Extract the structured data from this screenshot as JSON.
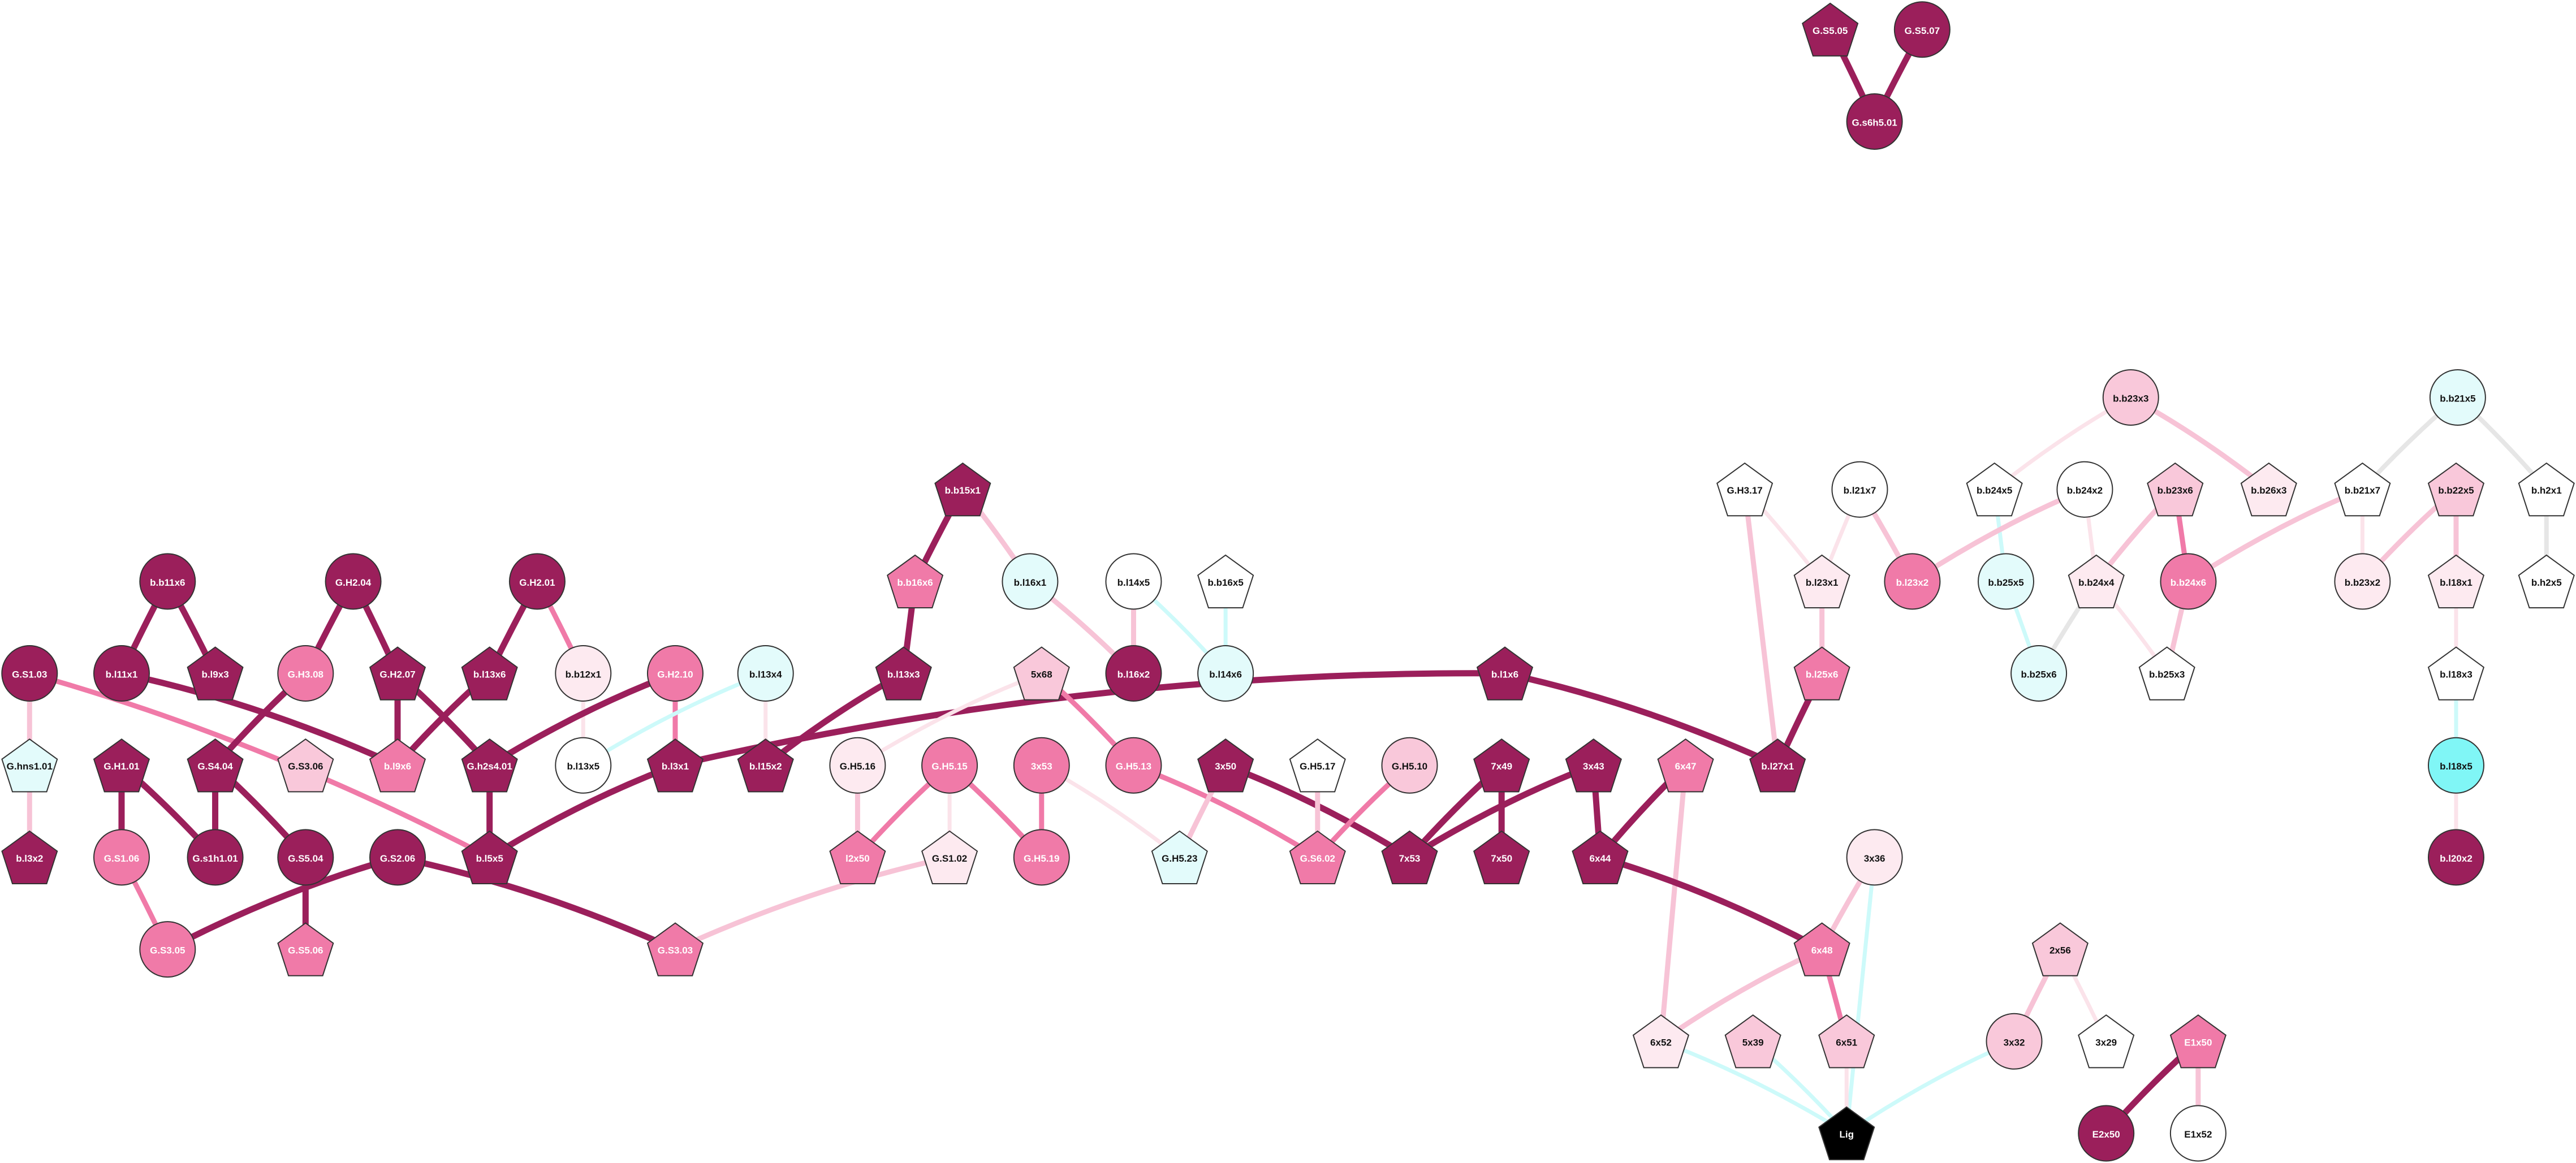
{
  "nodes": [
    {
      "label": "G.S5.05"
    },
    {
      "label": "G.S5.07"
    },
    {
      "label": "G.s6h5.01"
    },
    {
      "label": "b.b23x3"
    },
    {
      "label": "b.b21x5"
    },
    {
      "label": "G.H3.17"
    },
    {
      "label": "b.l21x7"
    },
    {
      "label": "b.b24x5"
    },
    {
      "label": "b.b24x2"
    },
    {
      "label": "b.b23x6"
    },
    {
      "label": "b.b26x3"
    },
    {
      "label": "b.b21x7"
    },
    {
      "label": "b.b22x5"
    },
    {
      "label": "b.h2x1"
    },
    {
      "label": "b.l23x1"
    },
    {
      "label": "b.l23x2"
    },
    {
      "label": "b.b25x5"
    },
    {
      "label": "b.b24x4"
    },
    {
      "label": "b.b24x6"
    },
    {
      "label": "b.b23x2"
    },
    {
      "label": "b.l18x1"
    },
    {
      "label": "b.h2x5"
    },
    {
      "label": "b.l25x6"
    },
    {
      "label": "b.b25x6"
    },
    {
      "label": "b.b25x3"
    },
    {
      "label": "b.l18x3"
    },
    {
      "label": "b.l18x5"
    },
    {
      "label": "b.l20x2"
    },
    {
      "label": "b.b15x1"
    },
    {
      "label": "b.b16x6"
    },
    {
      "label": "b.l16x1"
    },
    {
      "label": "b.l14x5"
    },
    {
      "label": "b.b16x5"
    },
    {
      "label": "b.l13x3"
    },
    {
      "label": "b.l16x2"
    },
    {
      "label": "b.l14x6"
    },
    {
      "label": "b.l1x6"
    },
    {
      "label": "b.l27x1"
    },
    {
      "label": "5x68"
    },
    {
      "label": "G.H5.16"
    },
    {
      "label": "G.H5.15"
    },
    {
      "label": "3x53"
    },
    {
      "label": "G.H5.13"
    },
    {
      "label": "3x50"
    },
    {
      "label": "G.H5.17"
    },
    {
      "label": "G.H5.10"
    },
    {
      "label": "7x49"
    },
    {
      "label": "3x43"
    },
    {
      "label": "6x47"
    },
    {
      "label": "l2x50"
    },
    {
      "label": "G.S1.02"
    },
    {
      "label": "G.H5.19"
    },
    {
      "label": "G.H5.23"
    },
    {
      "label": "G.S6.02"
    },
    {
      "label": "7x53"
    },
    {
      "label": "7x50"
    },
    {
      "label": "6x44"
    },
    {
      "label": "3x36"
    },
    {
      "label": "6x48"
    },
    {
      "label": "2x56"
    },
    {
      "label": "6x52"
    },
    {
      "label": "5x39"
    },
    {
      "label": "6x51"
    },
    {
      "label": "3x32"
    },
    {
      "label": "3x29"
    },
    {
      "label": "E1x50"
    },
    {
      "label": "Lig"
    },
    {
      "label": "E2x50"
    },
    {
      "label": "E1x52"
    },
    {
      "label": "b.b11x6"
    },
    {
      "label": "G.H2.04"
    },
    {
      "label": "G.H2.01"
    },
    {
      "label": "G.S1.03"
    },
    {
      "label": "b.l11x1"
    },
    {
      "label": "b.l9x3"
    },
    {
      "label": "G.H3.08"
    },
    {
      "label": "G.H2.07"
    },
    {
      "label": "b.l13x6"
    },
    {
      "label": "b.b12x1"
    },
    {
      "label": "G.H2.10"
    },
    {
      "label": "b.l13x4"
    },
    {
      "label": "G.hns1.01"
    },
    {
      "label": "G.S3.06"
    },
    {
      "label": "b.l9x6"
    },
    {
      "label": "G.h2s4.01"
    },
    {
      "label": "b.l13x5"
    },
    {
      "label": "b.l3x1"
    },
    {
      "label": "b.l15x2"
    },
    {
      "label": "G.H1.01"
    },
    {
      "label": "G.S4.04"
    },
    {
      "label": "b.l3x2"
    },
    {
      "label": "G.S1.06"
    },
    {
      "label": "G.s1h1.01"
    },
    {
      "label": "G.S5.04"
    },
    {
      "label": "G.S2.06"
    },
    {
      "label": "b.l5x5"
    },
    {
      "label": "G.S3.05"
    },
    {
      "label": "G.S5.06"
    },
    {
      "label": "G.S3.03"
    }
  ]
}
